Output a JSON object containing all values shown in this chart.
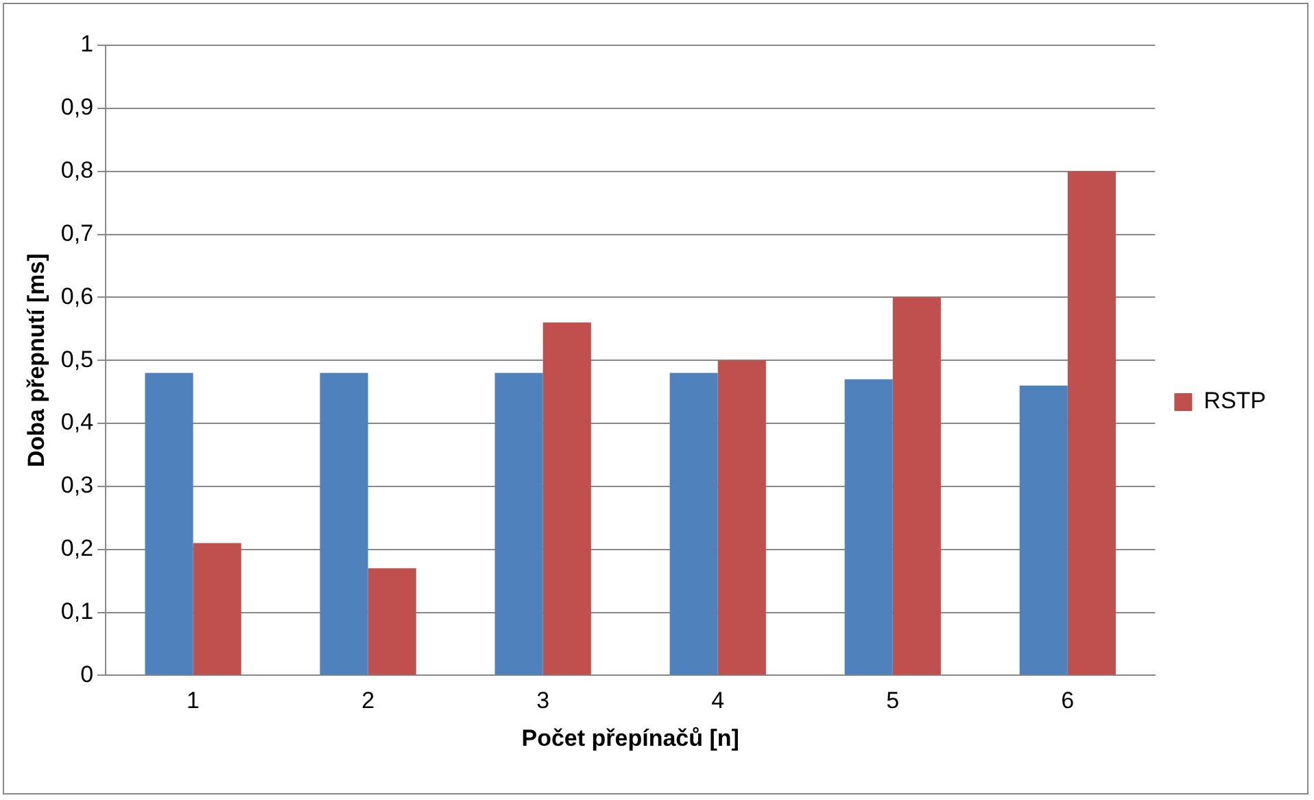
{
  "chart_data": {
    "type": "bar",
    "xlabel": "Počet přepínačů [n]",
    "ylabel": "Doba přepnutí [ms]",
    "categories": [
      "1",
      "2",
      "3",
      "4",
      "5",
      "6"
    ],
    "series": [
      {
        "color": "#4f81bd",
        "values": [
          0.48,
          0.48,
          0.48,
          0.48,
          0.47,
          0.46
        ]
      },
      {
        "name": "RSTP",
        "color": "#c0504d",
        "values": [
          0.21,
          0.17,
          0.56,
          0.5,
          0.6,
          0.8
        ]
      }
    ],
    "ylim": [
      0,
      1
    ],
    "yticks": [
      0,
      {
        "value": 0.1,
        "label": "0,1"
      },
      {
        "value": 0.2,
        "label": "0,2"
      },
      {
        "value": 0.3,
        "label": "0,3"
      },
      {
        "value": 0.4,
        "label": "0,4"
      },
      {
        "value": 0.5,
        "label": "0,5"
      },
      {
        "value": 0.6,
        "label": "0,6"
      },
      {
        "value": 0.7,
        "label": "0,7"
      },
      {
        "value": 0.8,
        "label": "0,8"
      },
      {
        "value": 0.9,
        "label": "0,9"
      },
      1
    ],
    "grid": "y",
    "legend": "right"
  }
}
